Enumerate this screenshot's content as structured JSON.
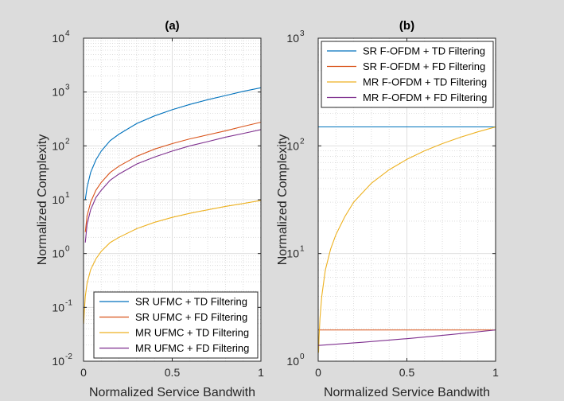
{
  "chart_data": [
    {
      "id": "a",
      "type": "line",
      "title": "(a)",
      "xlabel": "Normalized Service Bandwith",
      "ylabel": "Normalized Complexity",
      "xlim": [
        0,
        1
      ],
      "ylim": [
        0.01,
        10000
      ],
      "yscale": "log",
      "grid": "major+minor",
      "legend_position": "bottom-right",
      "xticks": [
        {
          "value": 0,
          "label": "0"
        },
        {
          "value": 0.5,
          "label": "0.5"
        },
        {
          "value": 1,
          "label": "1"
        }
      ],
      "yticks": [
        {
          "value": 0.01,
          "base": "10",
          "exp": "-2"
        },
        {
          "value": 0.1,
          "base": "10",
          "exp": "-1"
        },
        {
          "value": 1,
          "base": "10",
          "exp": "0"
        },
        {
          "value": 10,
          "base": "10",
          "exp": "1"
        },
        {
          "value": 100,
          "base": "10",
          "exp": "2"
        },
        {
          "value": 1000,
          "base": "10",
          "exp": "3"
        },
        {
          "value": 10000,
          "base": "10",
          "exp": "4"
        }
      ],
      "series": [
        {
          "name": "SR UFMC + TD Filtering",
          "color": "#0072bd",
          "x": [
            0.01,
            0.02,
            0.04,
            0.07,
            0.1,
            0.15,
            0.2,
            0.3,
            0.4,
            0.5,
            0.6,
            0.7,
            0.8,
            0.9,
            1.0
          ],
          "y": [
            10,
            17,
            32,
            55,
            80,
            125,
            165,
            260,
            360,
            470,
            590,
            720,
            860,
            1030,
            1200
          ]
        },
        {
          "name": "SR UFMC + FD Filtering",
          "color": "#d95319",
          "x": [
            0.01,
            0.02,
            0.04,
            0.07,
            0.1,
            0.15,
            0.2,
            0.3,
            0.4,
            0.5,
            0.6,
            0.7,
            0.8,
            0.9,
            1.0
          ],
          "y": [
            2.5,
            5,
            9,
            15,
            21,
            32,
            42,
            64,
            87,
            110,
            135,
            160,
            190,
            230,
            275
          ]
        },
        {
          "name": "MR UFMC + TD Filtering",
          "color": "#edb120",
          "x": [
            0.001,
            0.005,
            0.01,
            0.02,
            0.04,
            0.07,
            0.1,
            0.15,
            0.2,
            0.3,
            0.4,
            0.5,
            0.6,
            0.7,
            0.8,
            0.9,
            1.0
          ],
          "y": [
            0.05,
            0.09,
            0.16,
            0.28,
            0.5,
            0.8,
            1.1,
            1.6,
            2.0,
            2.9,
            3.8,
            4.7,
            5.6,
            6.5,
            7.5,
            8.5,
            9.7
          ]
        },
        {
          "name": "MR UFMC + FD Filtering",
          "color": "#7e2f8e",
          "x": [
            0.01,
            0.02,
            0.04,
            0.07,
            0.1,
            0.15,
            0.2,
            0.3,
            0.4,
            0.5,
            0.6,
            0.7,
            0.8,
            0.9,
            1.0
          ],
          "y": [
            1.6,
            3.5,
            6.5,
            11,
            15,
            23,
            30,
            46,
            62,
            80,
            100,
            120,
            145,
            170,
            200
          ]
        }
      ]
    },
    {
      "id": "b",
      "type": "line",
      "title": "(b)",
      "xlabel": "Normalized Service Bandwith",
      "ylabel": "Normalized Complexity",
      "xlim": [
        0,
        1
      ],
      "ylim": [
        1,
        1000
      ],
      "yscale": "log",
      "grid": "major+minor",
      "legend_position": "top-right",
      "xticks": [
        {
          "value": 0,
          "label": "0"
        },
        {
          "value": 0.5,
          "label": "0.5"
        },
        {
          "value": 1,
          "label": "1"
        }
      ],
      "yticks": [
        {
          "value": 1,
          "base": "10",
          "exp": "0"
        },
        {
          "value": 10,
          "base": "10",
          "exp": "1"
        },
        {
          "value": 100,
          "base": "10",
          "exp": "2"
        },
        {
          "value": 1000,
          "base": "10",
          "exp": "3"
        }
      ],
      "series": [
        {
          "name": "SR F-OFDM + TD Filtering",
          "color": "#0072bd",
          "x": [
            0,
            1
          ],
          "y": [
            150,
            150
          ]
        },
        {
          "name": "SR F-OFDM + FD Filtering",
          "color": "#d95319",
          "x": [
            0,
            1
          ],
          "y": [
            1.95,
            1.95
          ]
        },
        {
          "name": "MR F-OFDM + TD Filtering",
          "color": "#edb120",
          "x": [
            0.002,
            0.005,
            0.01,
            0.02,
            0.04,
            0.07,
            0.1,
            0.15,
            0.2,
            0.3,
            0.4,
            0.5,
            0.6,
            0.7,
            0.8,
            0.9,
            1.0
          ],
          "y": [
            1.2,
            1.7,
            2.5,
            4,
            7,
            11,
            15,
            22,
            30,
            45,
            60,
            75,
            90,
            105,
            120,
            135,
            150
          ]
        },
        {
          "name": "MR F-OFDM + FD Filtering",
          "color": "#7e2f8e",
          "x": [
            0,
            0.25,
            0.5,
            0.75,
            1.0
          ],
          "y": [
            1.4,
            1.5,
            1.62,
            1.77,
            1.95
          ]
        }
      ]
    }
  ]
}
